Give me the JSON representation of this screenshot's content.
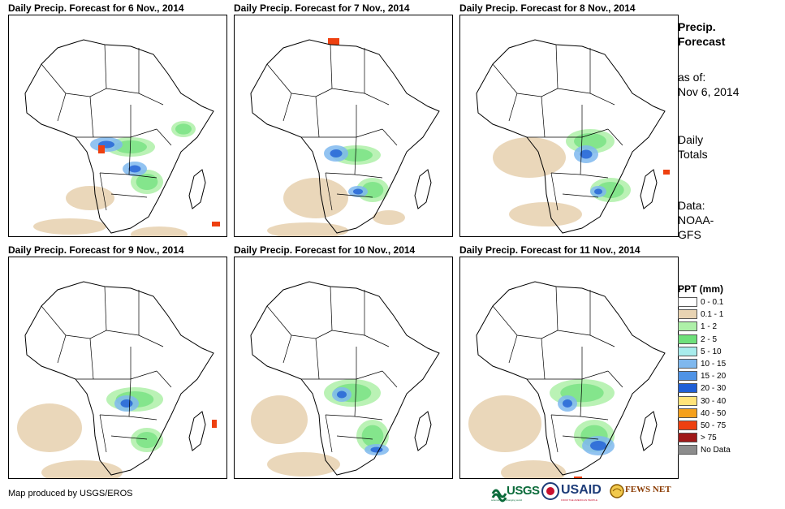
{
  "panels": [
    {
      "title": "Daily Precip. Forecast for 6 Nov., 2014"
    },
    {
      "title": "Daily Precip. Forecast for 7 Nov., 2014"
    },
    {
      "title": "Daily Precip. Forecast for 8 Nov., 2014"
    },
    {
      "title": "Daily Precip. Forecast for 9 Nov., 2014"
    },
    {
      "title": "Daily Precip. Forecast for 10 Nov., 2014"
    },
    {
      "title": "Daily Precip. Forecast for 11 Nov., 2014"
    }
  ],
  "side_info": {
    "title_line1": "Precip.",
    "title_line2": "Forecast",
    "asof_label": "as of:",
    "asof_date": "Nov 6, 2014",
    "totals_line1": "Daily",
    "totals_line2": "Totals",
    "data_line1": "Data:",
    "data_line2": "NOAA-",
    "data_line3": "GFS"
  },
  "legend": {
    "title": "PPT (mm)",
    "items": [
      {
        "label": "0 - 0.1",
        "color": "#ffffff"
      },
      {
        "label": "0.1 - 1",
        "color": "#e8d3b2"
      },
      {
        "label": "1 - 2",
        "color": "#aef0a8"
      },
      {
        "label": "2 - 5",
        "color": "#6ee07a"
      },
      {
        "label": "5 - 10",
        "color": "#a8ecec"
      },
      {
        "label": "10 - 15",
        "color": "#7fb8ee"
      },
      {
        "label": "15 - 20",
        "color": "#4f93e6"
      },
      {
        "label": "20 - 30",
        "color": "#1f5fd6"
      },
      {
        "label": "30 - 40",
        "color": "#ffe37a"
      },
      {
        "label": "40 - 50",
        "color": "#f5a01c"
      },
      {
        "label": "50 - 75",
        "color": "#ee4010"
      },
      {
        "label": "> 75",
        "color": "#a01818"
      },
      {
        "label": "No Data",
        "color": "#8c8c8c"
      }
    ]
  },
  "credit": "Map produced by USGS/EROS",
  "logos": {
    "usgs": "USGS",
    "usgs_tagline": "science for a changing world",
    "usaid": "USAID",
    "usaid_tagline": "FROM THE AMERICAN PEOPLE",
    "fewsnet": "FEWS NET"
  }
}
